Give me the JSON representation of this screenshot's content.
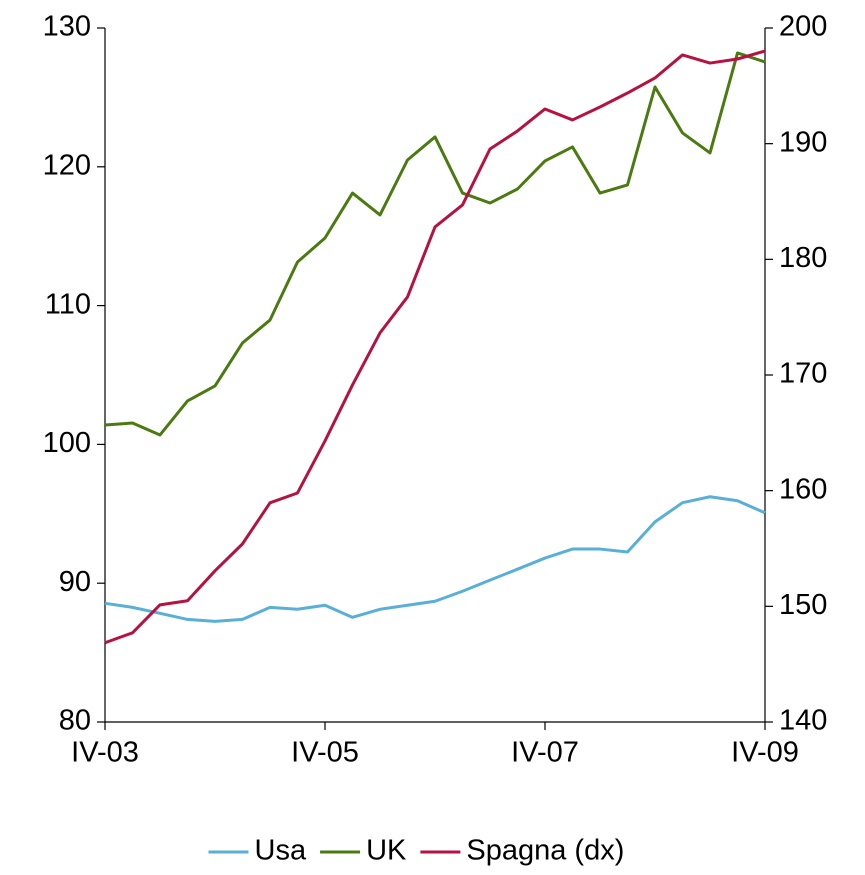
{
  "chart_data": {
    "type": "line",
    "categories": [
      "IV-03",
      null,
      null,
      null,
      null,
      null,
      null,
      null,
      "IV-05",
      null,
      null,
      null,
      null,
      null,
      null,
      null,
      "IV-07",
      null,
      null,
      null,
      null,
      null,
      null,
      null,
      "IV-09"
    ],
    "series": [
      {
        "name": "Usa",
        "color": "#5aafd6",
        "values": [
          88.55,
          88.26,
          87.83,
          87.39,
          87.25,
          87.39,
          88.26,
          88.12,
          88.41,
          87.54,
          88.12,
          88.41,
          88.7,
          89.42,
          90.22,
          91.01,
          91.81,
          92.46,
          92.46,
          92.25,
          94.42,
          95.8,
          96.23,
          95.94,
          95.07
        ]
      },
      {
        "name": "UK",
        "color": "#4a7a10",
        "values": [
          101.4,
          101.54,
          100.68,
          103.13,
          104.21,
          107.31,
          108.96,
          113.14,
          114.87,
          118.11,
          116.53,
          120.49,
          122.15,
          118.11,
          117.39,
          118.4,
          120.42,
          121.43,
          118.11,
          118.69,
          125.75,
          122.44,
          121.0,
          128.2,
          127.55
        ]
      },
      {
        "name": "Spagna (dx)",
        "color": "#b5123f",
        "axis": "y2",
        "values": [
          146.85,
          147.71,
          150.13,
          150.48,
          153.07,
          155.4,
          158.95,
          159.8,
          164.3,
          169.14,
          173.64,
          176.75,
          182.8,
          184.7,
          189.54,
          191.1,
          193.0,
          192.05,
          193.17,
          194.38,
          195.68,
          197.67,
          196.97,
          197.32,
          198.01
        ]
      }
    ],
    "ylim": [
      80,
      130
    ],
    "yticks": [
      80,
      90,
      100,
      110,
      120,
      130
    ],
    "y2lim": [
      140,
      200
    ],
    "y2ticks": [
      140,
      150,
      160,
      170,
      180,
      190,
      200
    ],
    "legend": "bottom",
    "grid": false
  }
}
